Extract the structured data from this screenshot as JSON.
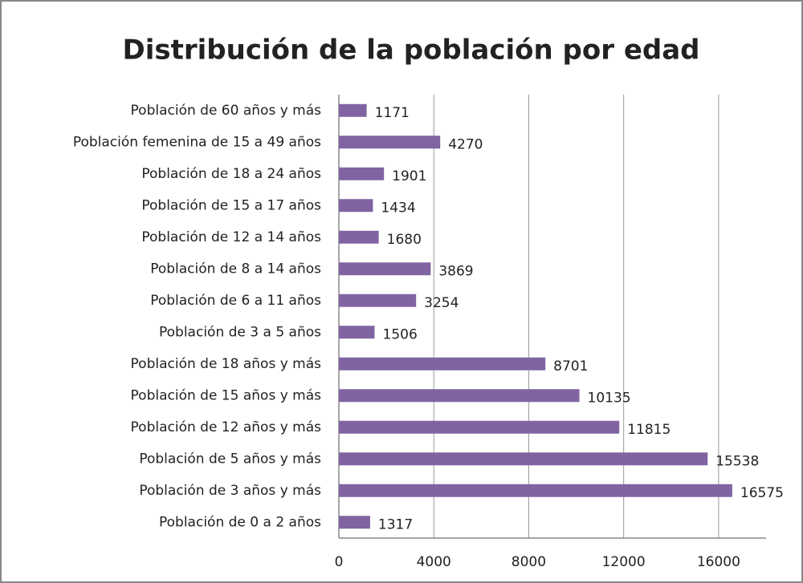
{
  "chart_data": {
    "type": "bar",
    "orientation": "horizontal",
    "title": "Distribución de la población por edad",
    "categories": [
      "Población de 60 años y más",
      "Población femenina de 15 a 49 años",
      "Población de 18 a 24 años",
      "Población de 15 a 17 años",
      "Población de 12 a 14 años",
      "Población de 8 a 14 años",
      "Población de 6 a 11 años",
      "Población de 3 a 5 años",
      "Población de 18 años y más",
      "Población de 15 años y más",
      "Población de 12 años y más",
      "Población de 5 años y más",
      "Población de 3 años y más",
      "Población de 0 a 2 años"
    ],
    "values": [
      1171,
      4270,
      1901,
      1434,
      1680,
      3869,
      3254,
      1506,
      8701,
      10135,
      11815,
      15538,
      16575,
      1317
    ],
    "color": "#8064a2",
    "xlim": [
      0,
      18000
    ],
    "xticks": [
      0,
      4000,
      8000,
      12000,
      16000
    ],
    "grid": true
  }
}
